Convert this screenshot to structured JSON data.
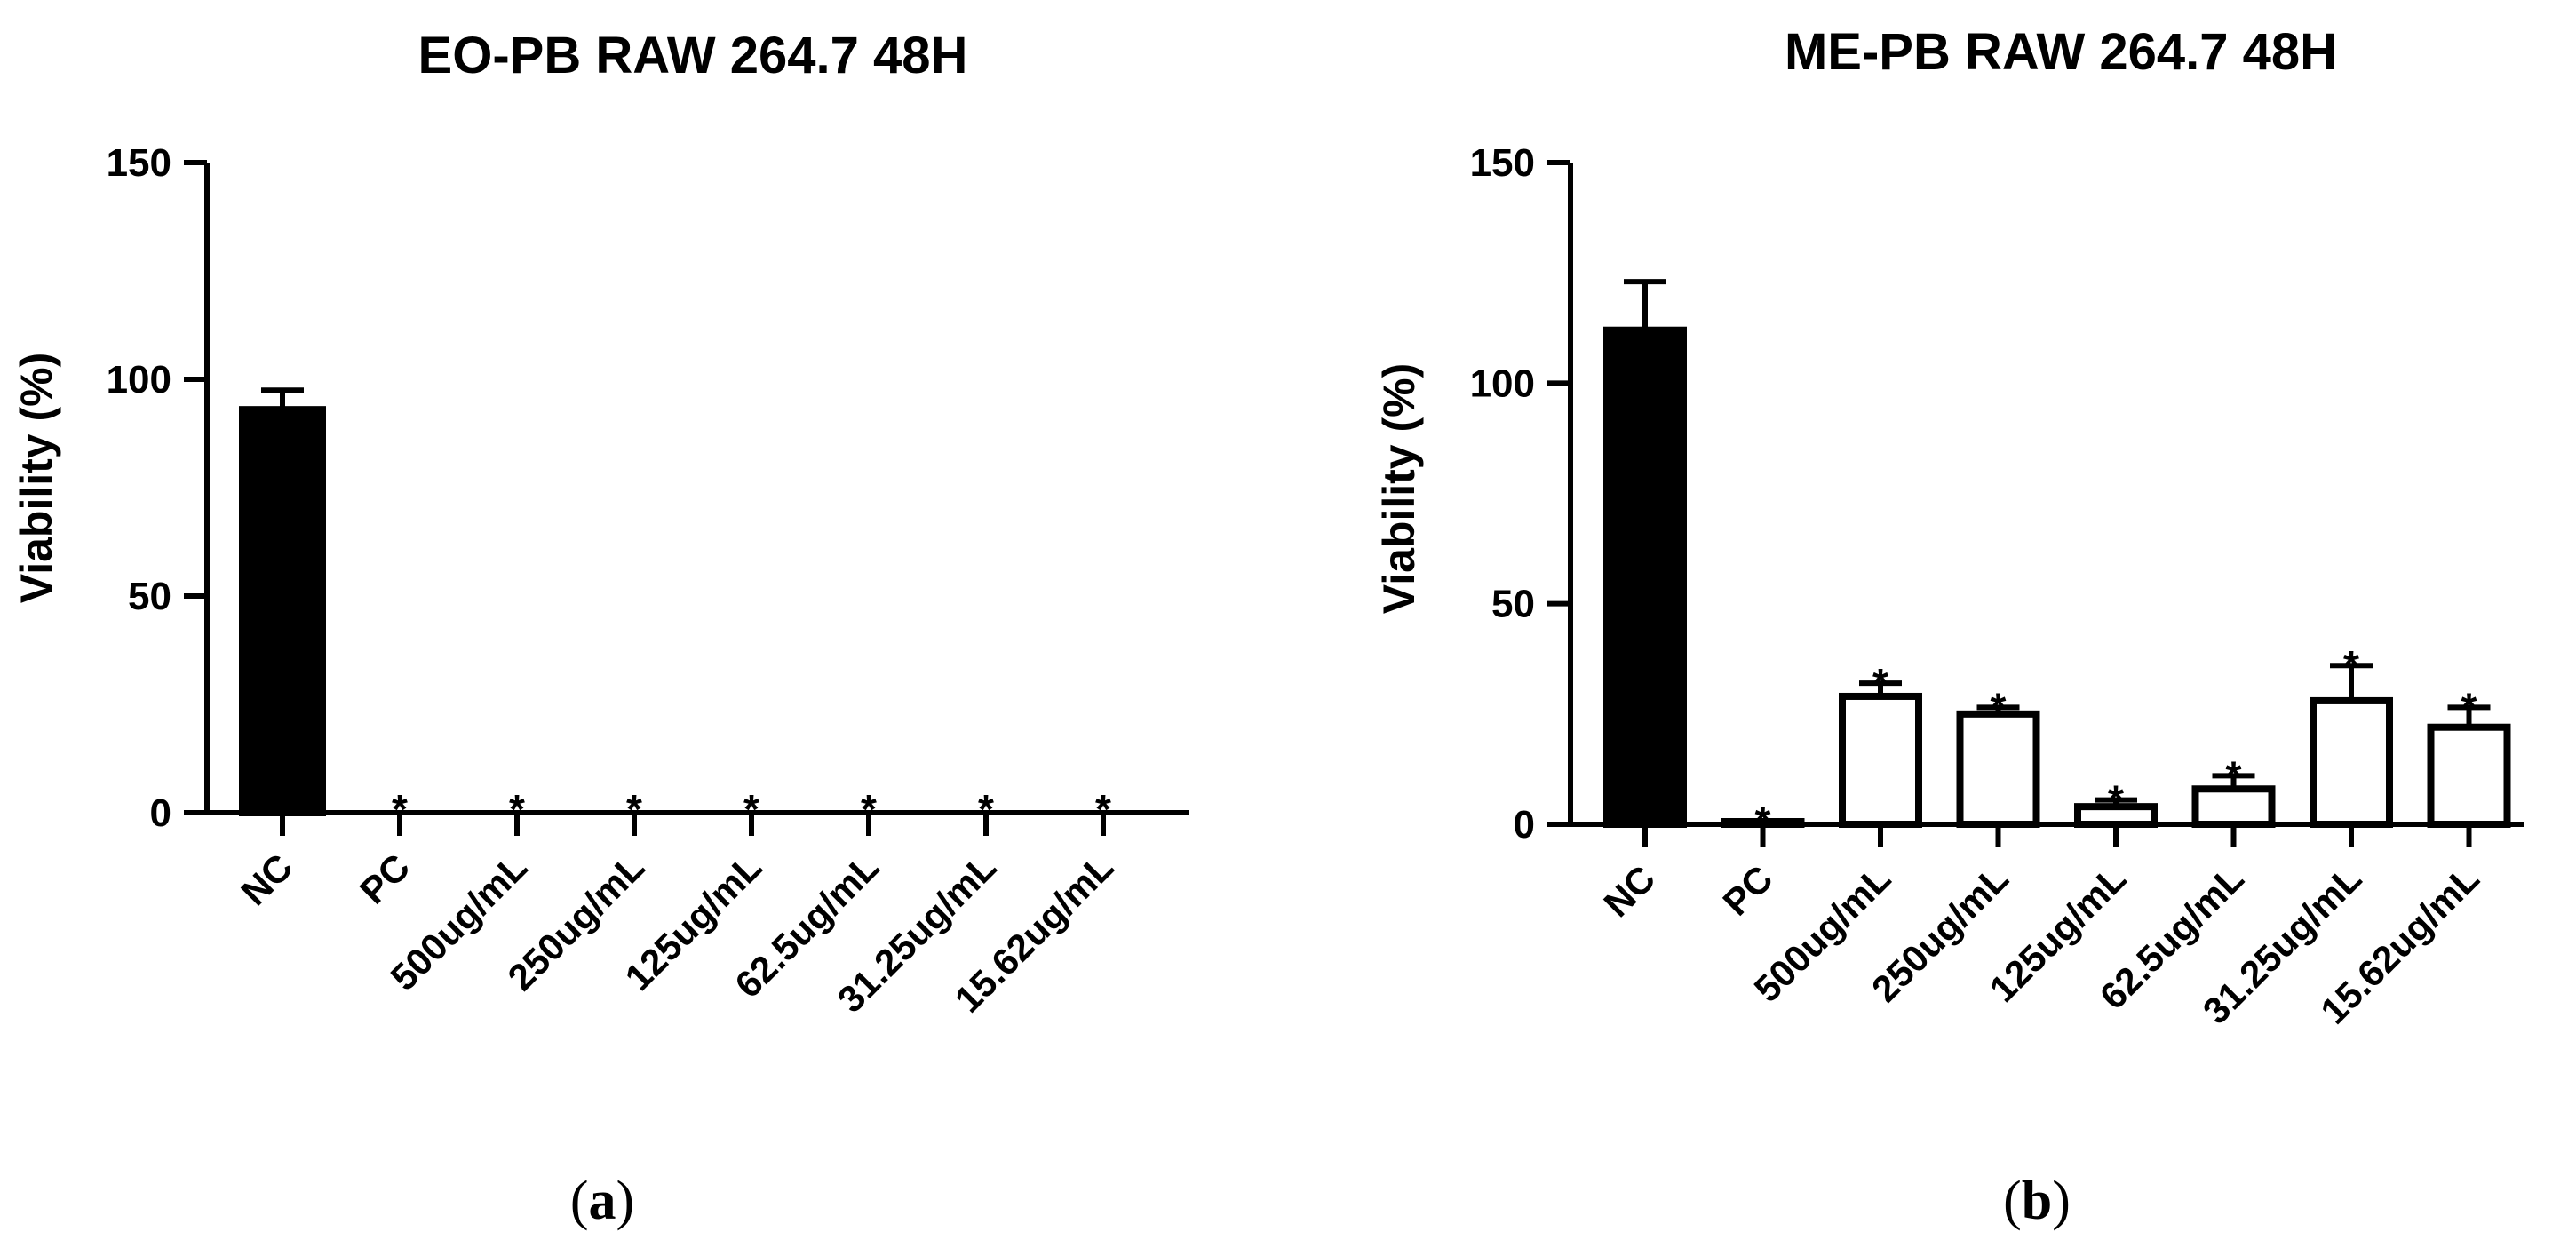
{
  "chart_data": [
    {
      "type": "bar",
      "panel_label": "(a)",
      "panel_letter": "a",
      "title": "EO-PB RAW 264.7 48H",
      "ylabel": "Viability (%)",
      "xlabel": "",
      "ylim": [
        0,
        150
      ],
      "yticks": [
        0,
        50,
        100,
        150
      ],
      "categories": [
        "NC",
        "PC",
        "500ug/mL",
        "250ug/mL",
        "125ug/mL",
        "62.5ug/mL",
        "31.25ug/mL",
        "15.62ug/mL"
      ],
      "values": [
        93,
        0,
        0,
        0,
        0,
        0,
        0,
        0
      ],
      "errors": [
        4.5,
        0,
        0,
        0,
        0,
        0,
        0,
        0
      ],
      "significance": [
        "",
        "*",
        "*",
        "*",
        "*",
        "*",
        "*",
        "*"
      ],
      "bar_fill": [
        "#000000",
        "#ffffff",
        "#ffffff",
        "#ffffff",
        "#ffffff",
        "#ffffff",
        "#ffffff",
        "#ffffff"
      ],
      "grid": false,
      "legend": "none"
    },
    {
      "type": "bar",
      "panel_label": "(b)",
      "panel_letter": "b",
      "title": "ME-PB RAW 264.7 48H",
      "ylabel": "Viability (%)",
      "xlabel": "",
      "ylim": [
        0,
        150
      ],
      "yticks": [
        0,
        50,
        100,
        150
      ],
      "categories": [
        "NC",
        "PC",
        "500ug/mL",
        "250ug/mL",
        "125ug/mL",
        "62.5ug/mL",
        "31.25ug/mL",
        "15.62ug/mL"
      ],
      "values": [
        112,
        0.5,
        29,
        25,
        4,
        8,
        28,
        22
      ],
      "errors": [
        11,
        0.3,
        3,
        1.5,
        1.5,
        3,
        8,
        4.5
      ],
      "significance": [
        "",
        "*",
        "*",
        "*",
        "*",
        "*",
        "*",
        "*"
      ],
      "bar_fill": [
        "#000000",
        "#ffffff",
        "#ffffff",
        "#ffffff",
        "#ffffff",
        "#ffffff",
        "#ffffff",
        "#ffffff"
      ],
      "grid": false,
      "legend": "none"
    }
  ]
}
